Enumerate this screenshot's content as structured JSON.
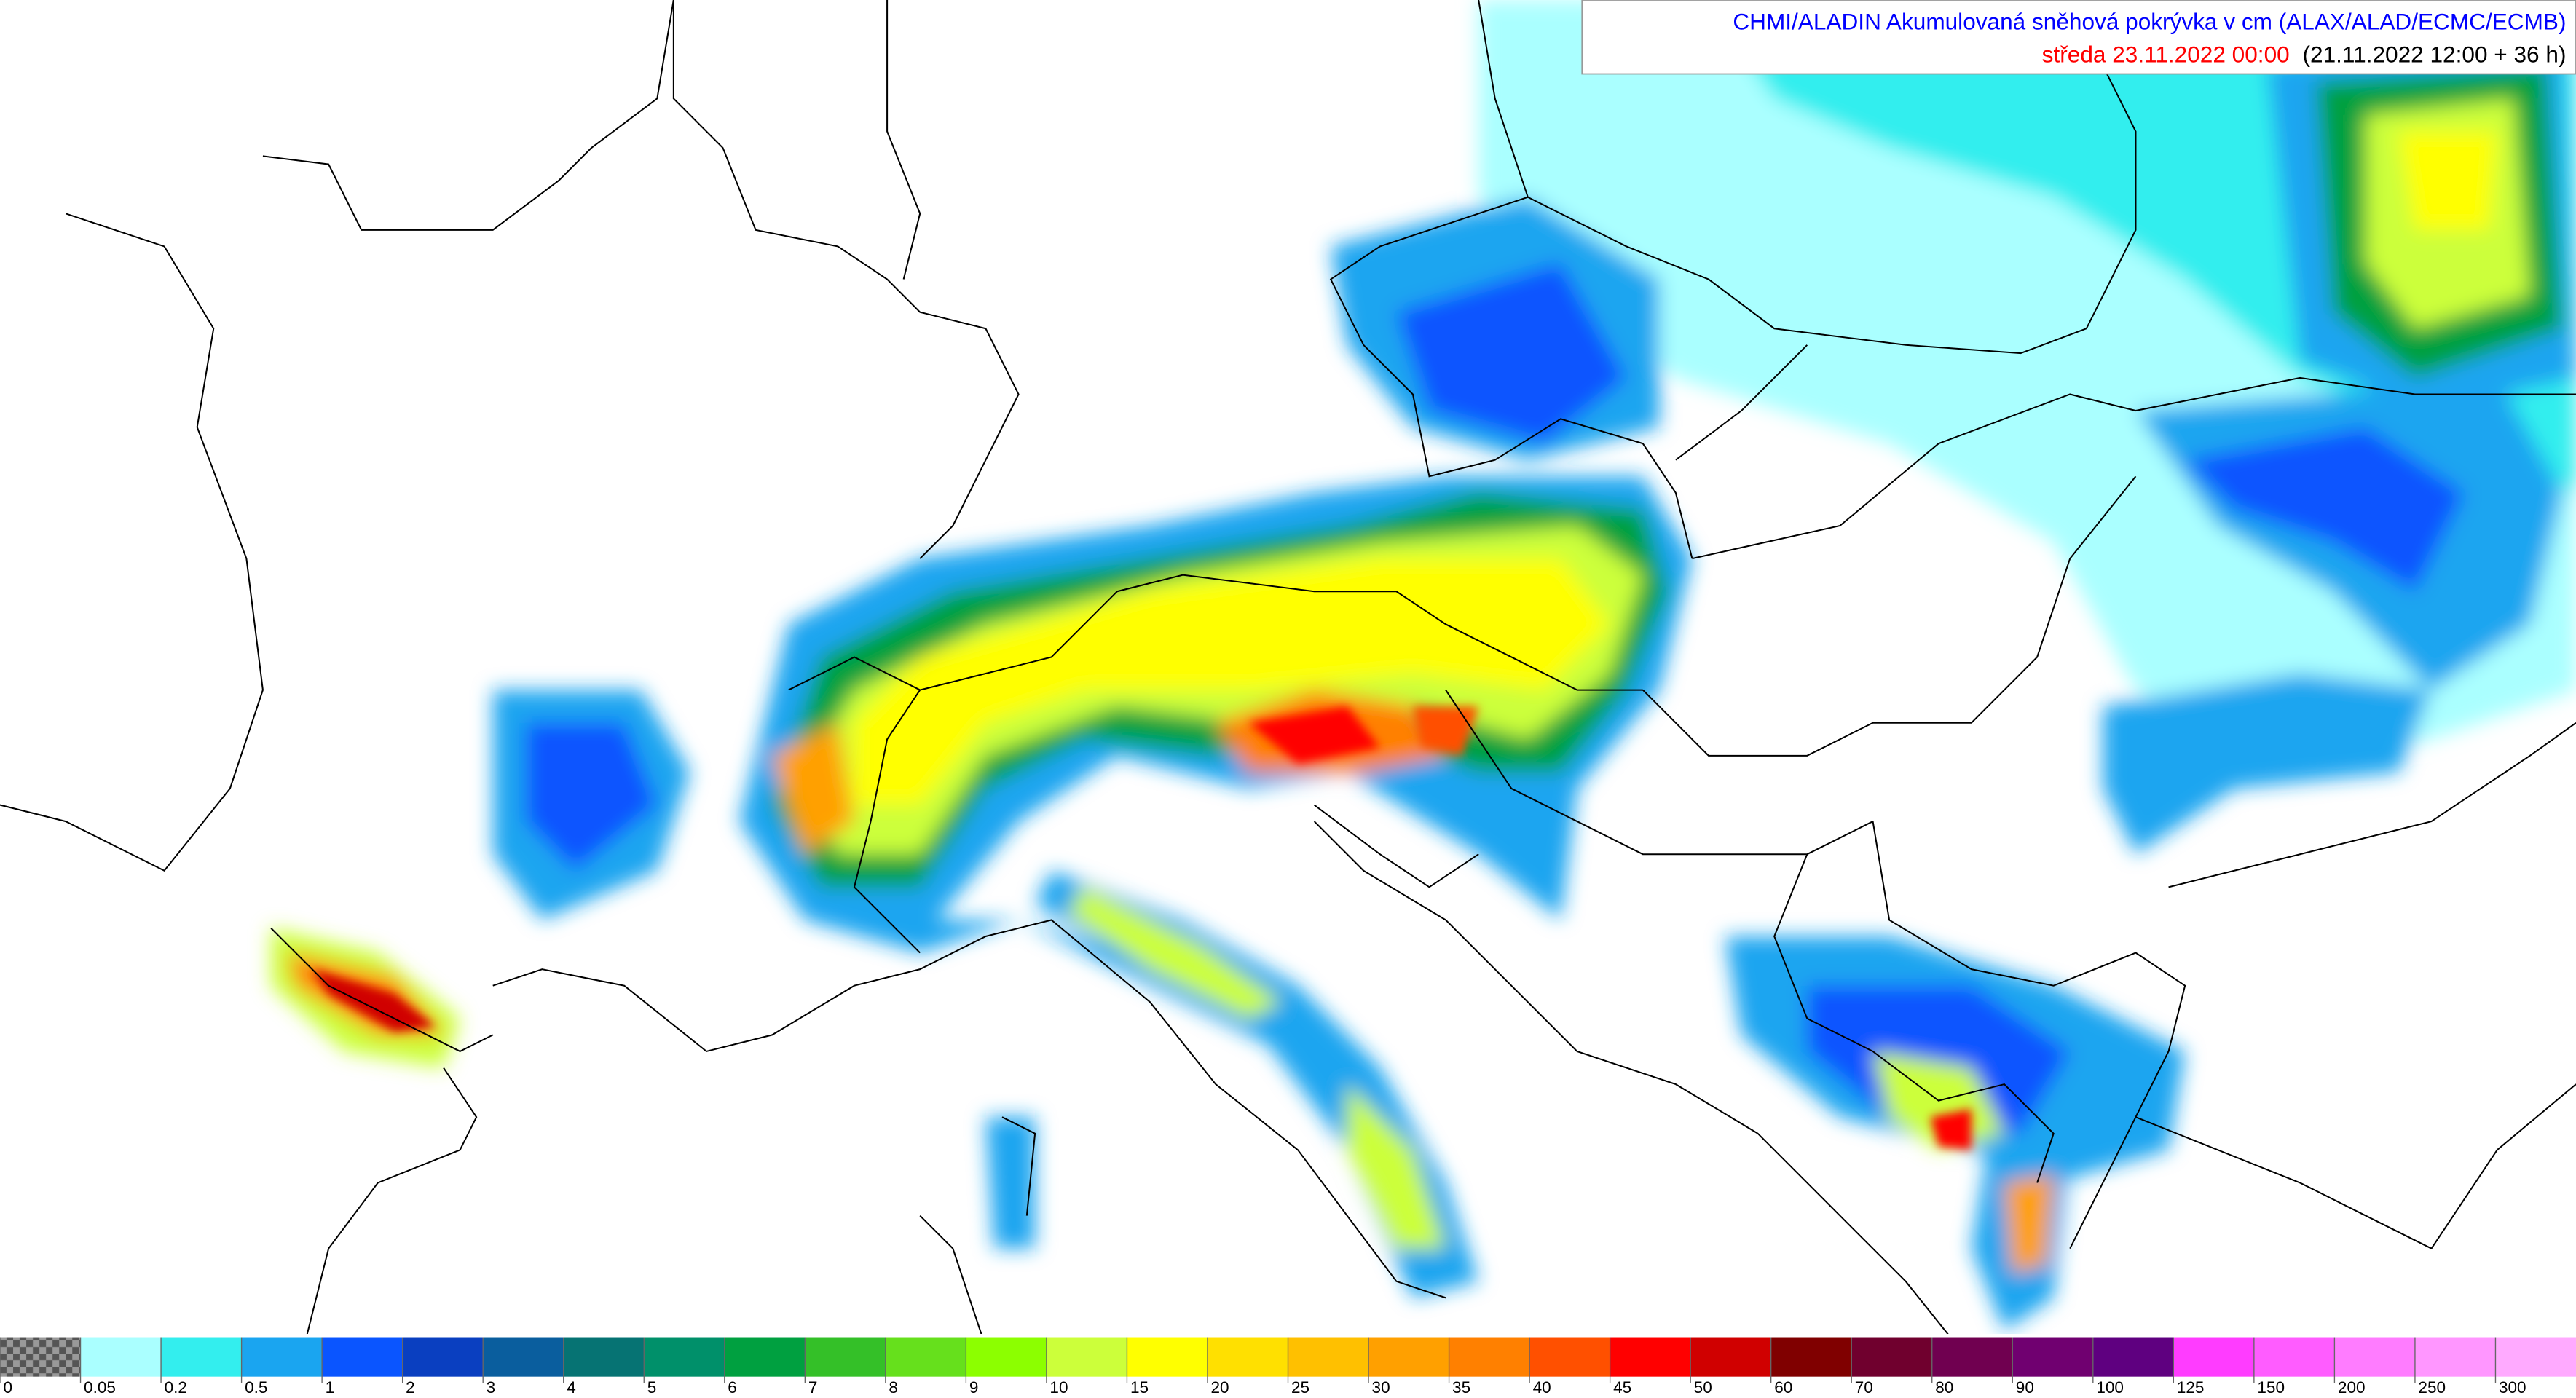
{
  "header": {
    "title": "CHMI/ALADIN Akumulovaná sněhová pokrývka v cm (ALAX/ALAD/ECMC/ECMB)",
    "valid_time": "středa 23.11.2022 00:00",
    "run_info": "(21.11.2022 12:00 + 36 h)"
  },
  "legend": {
    "labels": [
      "0",
      "0.05",
      "0.2",
      "0.5",
      "1",
      "2",
      "3",
      "4",
      "5",
      "6",
      "7",
      "8",
      "9",
      "10",
      "15",
      "20",
      "25",
      "30",
      "35",
      "40",
      "45",
      "50",
      "60",
      "70",
      "80",
      "90",
      "100",
      "125",
      "150",
      "200",
      "250",
      "300"
    ],
    "colors": [
      "#aaffff",
      "#33eeee",
      "#1aa5f0",
      "#0a55ff",
      "#0a3fc0",
      "#0a5e9e",
      "#067373",
      "#00906a",
      "#00a040",
      "#34c028",
      "#66e01c",
      "#8cff00",
      "#ccff3a",
      "#ffff00",
      "#ffe000",
      "#ffc000",
      "#ffa000",
      "#ff8000",
      "#ff5000",
      "#ff0000",
      "#d00000",
      "#800000",
      "#70002e",
      "#700050",
      "#700070",
      "#5f0080",
      "#ff3cff",
      "#ff5cff",
      "#ff7cff",
      "#ff96ff",
      "#ffaaff"
    ]
  }
}
